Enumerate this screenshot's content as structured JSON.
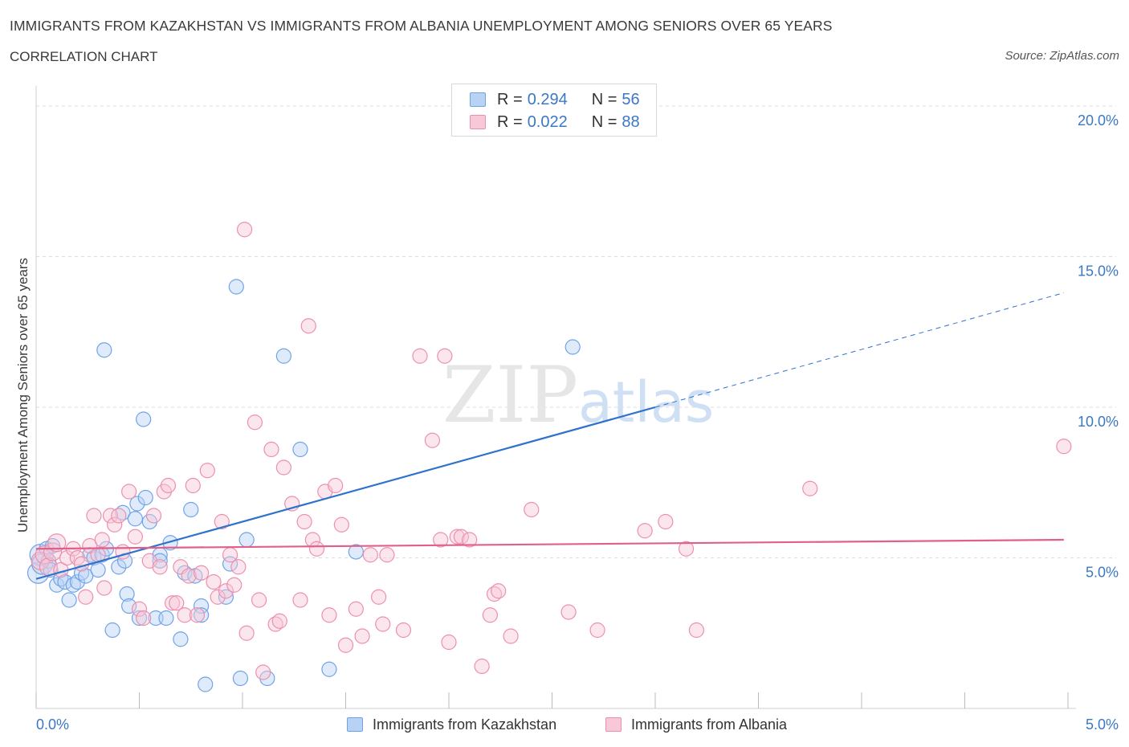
{
  "chart_data": {
    "type": "scatter",
    "title": "IMMIGRANTS FROM KAZAKHSTAN VS IMMIGRANTS FROM ALBANIA UNEMPLOYMENT AMONG SENIORS OVER 65 YEARS",
    "subtitle": "CORRELATION CHART",
    "source": "Source: ZipAtlas.com",
    "xlabel": "",
    "ylabel": "Unemployment Among Seniors over 65 years",
    "xlim": [
      0,
      5
    ],
    "ylim": [
      0,
      20
    ],
    "x_tick_labels": [
      "0.0%",
      "5.0%"
    ],
    "y_tick_values": [
      5,
      10,
      15,
      20
    ],
    "y_tick_labels": [
      "5.0%",
      "10.0%",
      "15.0%",
      "20.0%"
    ],
    "watermark": "ZIPatlas",
    "legend": [
      {
        "name": "Immigrants from Kazakhstan",
        "r_label": "R = ",
        "r": "0.294",
        "n_label": "N = ",
        "n": "56",
        "color": "#6fa3e8",
        "fill": "#b8d2f5"
      },
      {
        "name": "Immigrants from Albania",
        "r_label": "R = ",
        "r": "0.022",
        "n_label": "N = ",
        "n": "88",
        "color": "#ec8fae",
        "fill": "#f8c8d8"
      }
    ],
    "series": [
      {
        "name": "Immigrants from Kazakhstan",
        "color": "#6fa3e8",
        "trend": {
          "x": [
            0,
            3.0
          ],
          "y": [
            4.3,
            10.0
          ],
          "dashed_x": [
            3.0,
            4.98
          ],
          "dashed_y": [
            10.0,
            13.8
          ],
          "color": "#2f72cc"
        },
        "points": [
          [
            0.01,
            4.5
          ],
          [
            0.02,
            5.1
          ],
          [
            0.03,
            4.8
          ],
          [
            0.05,
            5.3
          ],
          [
            0.06,
            4.9
          ],
          [
            0.07,
            4.6
          ],
          [
            0.08,
            5.4
          ],
          [
            0.1,
            4.1
          ],
          [
            0.12,
            4.3
          ],
          [
            0.14,
            4.2
          ],
          [
            0.16,
            3.6
          ],
          [
            0.18,
            4.1
          ],
          [
            0.2,
            4.2
          ],
          [
            0.22,
            4.5
          ],
          [
            0.24,
            4.4
          ],
          [
            0.26,
            5.1
          ],
          [
            0.28,
            5.0
          ],
          [
            0.3,
            4.6
          ],
          [
            0.32,
            5.1
          ],
          [
            0.34,
            5.3
          ],
          [
            0.33,
            11.9
          ],
          [
            0.37,
            2.6
          ],
          [
            0.4,
            4.7
          ],
          [
            0.42,
            6.5
          ],
          [
            0.43,
            4.9
          ],
          [
            0.44,
            3.8
          ],
          [
            0.45,
            3.4
          ],
          [
            0.48,
            6.3
          ],
          [
            0.49,
            6.8
          ],
          [
            0.5,
            3.0
          ],
          [
            0.52,
            9.6
          ],
          [
            0.53,
            7.0
          ],
          [
            0.55,
            6.2
          ],
          [
            0.58,
            3.0
          ],
          [
            0.6,
            5.1
          ],
          [
            0.6,
            4.9
          ],
          [
            0.63,
            3.0
          ],
          [
            0.65,
            5.5
          ],
          [
            0.7,
            2.3
          ],
          [
            0.72,
            4.5
          ],
          [
            0.75,
            6.6
          ],
          [
            0.77,
            4.4
          ],
          [
            0.8,
            3.4
          ],
          [
            0.8,
            3.1
          ],
          [
            0.82,
            0.8
          ],
          [
            0.92,
            3.7
          ],
          [
            0.94,
            4.8
          ],
          [
            0.97,
            14.0
          ],
          [
            0.99,
            1.0
          ],
          [
            1.02,
            5.6
          ],
          [
            1.12,
            1.0
          ],
          [
            1.2,
            11.7
          ],
          [
            1.28,
            8.6
          ],
          [
            1.42,
            1.3
          ],
          [
            1.55,
            5.2
          ],
          [
            2.6,
            12.0
          ]
        ]
      },
      {
        "name": "Immigrants from Albania",
        "color": "#ec8fae",
        "trend": {
          "x": [
            0,
            4.98
          ],
          "y": [
            5.3,
            5.6
          ],
          "color": "#e0608a"
        },
        "points": [
          [
            0.02,
            4.9
          ],
          [
            0.04,
            5.1
          ],
          [
            0.06,
            4.7
          ],
          [
            0.08,
            5.2
          ],
          [
            0.1,
            5.5
          ],
          [
            0.12,
            4.6
          ],
          [
            0.15,
            5.0
          ],
          [
            0.18,
            5.3
          ],
          [
            0.2,
            5.0
          ],
          [
            0.22,
            4.8
          ],
          [
            0.24,
            3.7
          ],
          [
            0.26,
            5.4
          ],
          [
            0.28,
            6.4
          ],
          [
            0.3,
            5.1
          ],
          [
            0.32,
            5.6
          ],
          [
            0.33,
            4.0
          ],
          [
            0.36,
            6.4
          ],
          [
            0.38,
            6.1
          ],
          [
            0.4,
            6.4
          ],
          [
            0.42,
            5.2
          ],
          [
            0.45,
            7.2
          ],
          [
            0.48,
            5.7
          ],
          [
            0.5,
            3.3
          ],
          [
            0.52,
            3.0
          ],
          [
            0.55,
            4.9
          ],
          [
            0.57,
            6.4
          ],
          [
            0.6,
            4.7
          ],
          [
            0.62,
            7.2
          ],
          [
            0.64,
            7.4
          ],
          [
            0.66,
            3.5
          ],
          [
            0.68,
            3.5
          ],
          [
            0.7,
            4.7
          ],
          [
            0.72,
            3.1
          ],
          [
            0.74,
            4.4
          ],
          [
            0.76,
            7.4
          ],
          [
            0.78,
            3.1
          ],
          [
            0.8,
            4.5
          ],
          [
            0.83,
            7.9
          ],
          [
            0.86,
            4.2
          ],
          [
            0.88,
            3.7
          ],
          [
            0.9,
            6.2
          ],
          [
            0.92,
            3.9
          ],
          [
            0.94,
            5.1
          ],
          [
            0.96,
            4.1
          ],
          [
            0.98,
            4.7
          ],
          [
            1.01,
            15.9
          ],
          [
            1.02,
            2.5
          ],
          [
            1.06,
            9.5
          ],
          [
            1.08,
            3.6
          ],
          [
            1.1,
            1.2
          ],
          [
            1.14,
            8.6
          ],
          [
            1.16,
            2.8
          ],
          [
            1.18,
            2.9
          ],
          [
            1.2,
            8.0
          ],
          [
            1.24,
            6.8
          ],
          [
            1.28,
            3.6
          ],
          [
            1.3,
            6.2
          ],
          [
            1.32,
            12.7
          ],
          [
            1.34,
            5.6
          ],
          [
            1.36,
            5.3
          ],
          [
            1.4,
            7.2
          ],
          [
            1.42,
            3.1
          ],
          [
            1.45,
            7.4
          ],
          [
            1.48,
            6.1
          ],
          [
            1.5,
            2.1
          ],
          [
            1.55,
            3.3
          ],
          [
            1.58,
            2.4
          ],
          [
            1.62,
            5.1
          ],
          [
            1.66,
            3.7
          ],
          [
            1.68,
            2.8
          ],
          [
            1.7,
            5.1
          ],
          [
            1.78,
            2.6
          ],
          [
            1.86,
            11.7
          ],
          [
            1.92,
            8.9
          ],
          [
            1.96,
            5.6
          ],
          [
            1.98,
            11.7
          ],
          [
            2.0,
            2.2
          ],
          [
            2.04,
            5.7
          ],
          [
            2.06,
            5.7
          ],
          [
            2.1,
            5.6
          ],
          [
            2.16,
            1.4
          ],
          [
            2.2,
            3.1
          ],
          [
            2.22,
            3.8
          ],
          [
            2.24,
            3.9
          ],
          [
            2.3,
            2.4
          ],
          [
            2.4,
            6.6
          ],
          [
            2.58,
            3.2
          ],
          [
            2.72,
            2.6
          ]
        ]
      },
      {
        "name": "Immigrants from Albania (outliers)",
        "color": "#ec8fae",
        "points": [
          [
            2.95,
            5.9
          ],
          [
            3.05,
            6.2
          ],
          [
            3.15,
            5.3
          ],
          [
            3.2,
            2.6
          ],
          [
            3.75,
            7.3
          ],
          [
            4.98,
            8.7
          ]
        ]
      }
    ]
  }
}
